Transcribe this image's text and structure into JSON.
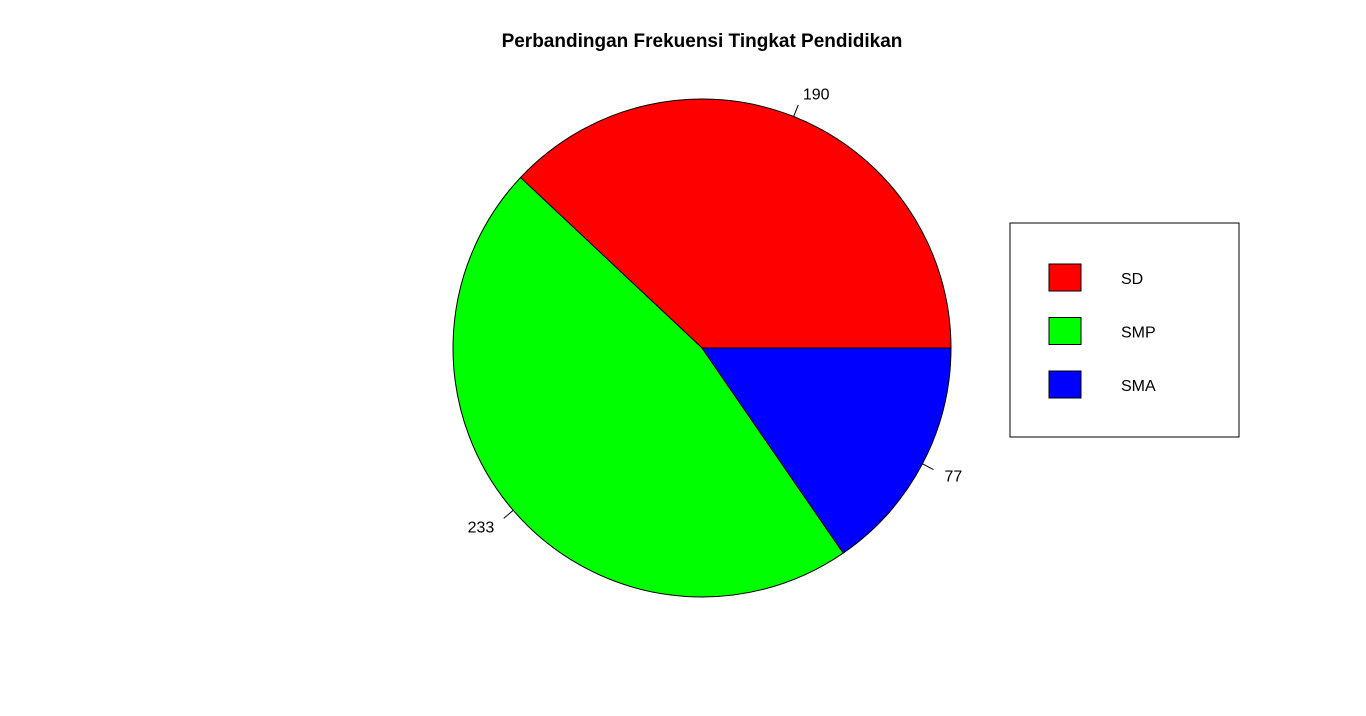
{
  "chart_data": {
    "type": "pie",
    "title": "Perbandingan Frekuensi Tingkat Pendidikan",
    "slices": [
      {
        "label": "SD",
        "value": 190,
        "display_label": "190",
        "color": "#FF0000"
      },
      {
        "label": "SMP",
        "value": 233,
        "display_label": "233",
        "color": "#00FF00"
      },
      {
        "label": "SMA",
        "value": 77,
        "display_label": "77",
        "color": "#0000FF"
      }
    ],
    "start": "3 o'clock",
    "direction": "counterclockwise",
    "legend": {
      "position": "right",
      "entries": [
        "SD",
        "SMP",
        "SMA"
      ]
    }
  }
}
